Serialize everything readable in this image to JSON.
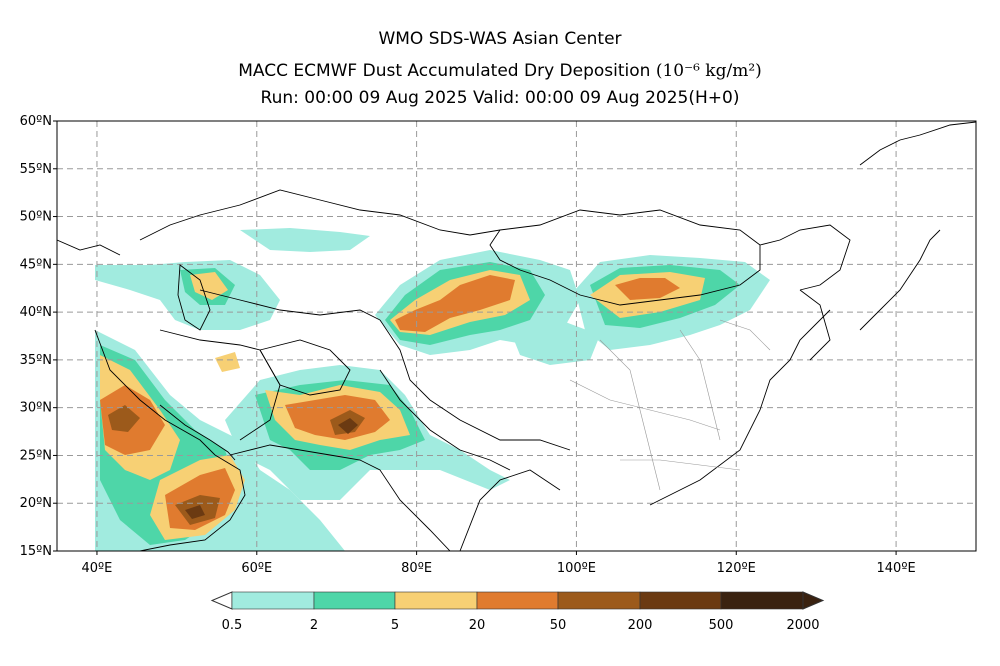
{
  "title": {
    "line1": "WMO SDS-WAS Asian Center",
    "line2_main": "MACC ECMWF Dust Accumulated Dry Deposition",
    "line2_unit": "(10⁻⁶ kg/m²)",
    "line3": "Run: 00:00 09 Aug 2025     Valid: 00:00 09 Aug 2025(H+0)"
  },
  "map": {
    "lon_range": [
      35,
      150
    ],
    "lat_range": [
      15,
      60
    ],
    "lat_labels": [
      "15ºN",
      "20ºN",
      "25ºN",
      "30ºN",
      "35ºN",
      "40ºN",
      "45ºN",
      "50ºN",
      "55ºN",
      "60ºN"
    ],
    "lon_labels": [
      "40ºE",
      "60ºE",
      "80ºE",
      "100ºE",
      "120ºE",
      "140ºE"
    ],
    "grid": true,
    "grid_style": "dashed"
  },
  "colorbar": {
    "colors": [
      "#a1ebdf",
      "#4ed6a8",
      "#f7d074",
      "#e07b2f",
      "#9c5a1b",
      "#6b3a12",
      "#3a2210"
    ],
    "labels": [
      "0.5",
      "2",
      "5",
      "20",
      "50",
      "200",
      "500",
      "2000"
    ],
    "extend": "both"
  }
}
